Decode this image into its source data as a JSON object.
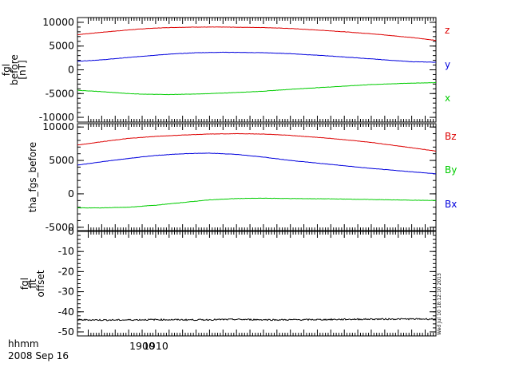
{
  "x_axis": {
    "label_line1": "hhmm",
    "label_line2": "2008 Sep 16",
    "range": [
      1852,
      2118
    ],
    "ticks": [
      1900,
      1910
    ],
    "tick_labels": [
      "1900",
      "1910"
    ],
    "unit": "minutes after 18:00 (axis prints hhmm)"
  },
  "stamp_text": "Wed Jul 10 18:12:10 2013",
  "colors": {
    "red": "#dd0000",
    "blue": "#0000dd",
    "green": "#00cc00",
    "black": "#000000"
  },
  "chart_data": [
    {
      "type": "line",
      "ylabel_lines": [
        "fgl",
        "before",
        "[nT]"
      ],
      "ylim": [
        -11000,
        11000
      ],
      "yticks": [
        10000,
        5000,
        0,
        -5000,
        -10000
      ],
      "ytick_labels": [
        "10000",
        "5000",
        "0",
        "-5000",
        "-10000"
      ],
      "x": [
        1852,
        1870,
        1890,
        1904,
        1920,
        1940,
        1960,
        1990,
        2010,
        2040,
        2070,
        2100,
        2118
      ],
      "series": [
        {
          "name": "z",
          "color": "#dd0000",
          "values": [
            7400,
            7900,
            8400,
            8700,
            8900,
            9000,
            9000,
            8900,
            8700,
            8200,
            7600,
            6800,
            6200
          ]
        },
        {
          "name": "y",
          "color": "#0000dd",
          "values": [
            1800,
            2100,
            2600,
            2950,
            3300,
            3600,
            3700,
            3600,
            3400,
            2900,
            2300,
            1700,
            1600
          ]
        },
        {
          "name": "x",
          "color": "#00cc00",
          "values": [
            -4300,
            -4600,
            -5000,
            -5150,
            -5200,
            -5100,
            -4900,
            -4500,
            -4100,
            -3600,
            -3100,
            -2800,
            -2700
          ]
        }
      ]
    },
    {
      "type": "line",
      "ylabel_lines": [
        "tha_fgs_before"
      ],
      "ylim": [
        -5500,
        10500
      ],
      "yticks": [
        10000,
        5000,
        0,
        -5000
      ],
      "ytick_labels": [
        "10000",
        "5000",
        "0",
        "-5000"
      ],
      "x": [
        1852,
        1870,
        1890,
        1910,
        1930,
        1950,
        1970,
        1990,
        2010,
        2040,
        2070,
        2100,
        2118
      ],
      "series": [
        {
          "name": "Bz",
          "color": "#dd0000",
          "values": [
            7300,
            7800,
            8300,
            8600,
            8800,
            8950,
            9000,
            8950,
            8750,
            8300,
            7700,
            6900,
            6400
          ]
        },
        {
          "name": "By",
          "color": "#00cc00",
          "values": [
            -2100,
            -2100,
            -2000,
            -1700,
            -1300,
            -900,
            -700,
            -650,
            -700,
            -750,
            -850,
            -950,
            -1000
          ]
        },
        {
          "name": "Bx",
          "color": "#0000dd",
          "values": [
            4300,
            4800,
            5300,
            5750,
            6000,
            6100,
            5900,
            5500,
            5000,
            4400,
            3800,
            3300,
            3000
          ]
        }
      ]
    },
    {
      "type": "line",
      "ylabel_lines": [
        "fgl",
        "fit",
        "offset"
      ],
      "ylim": [
        -52,
        0
      ],
      "yticks": [
        0,
        -10,
        -20,
        -30,
        -40,
        -50
      ],
      "ytick_labels": [
        "0",
        "-10",
        "-20",
        "-30",
        "-40",
        "-50"
      ],
      "x": [
        1852,
        1880,
        1910,
        1940,
        1970,
        2000,
        2030,
        2060,
        2090,
        2118
      ],
      "series": [
        {
          "name": "",
          "color": "#000000",
          "values": [
            -44.0,
            -44.1,
            -43.9,
            -44.0,
            -43.8,
            -44.0,
            -43.9,
            -43.7,
            -43.6,
            -43.6
          ]
        }
      ]
    }
  ]
}
